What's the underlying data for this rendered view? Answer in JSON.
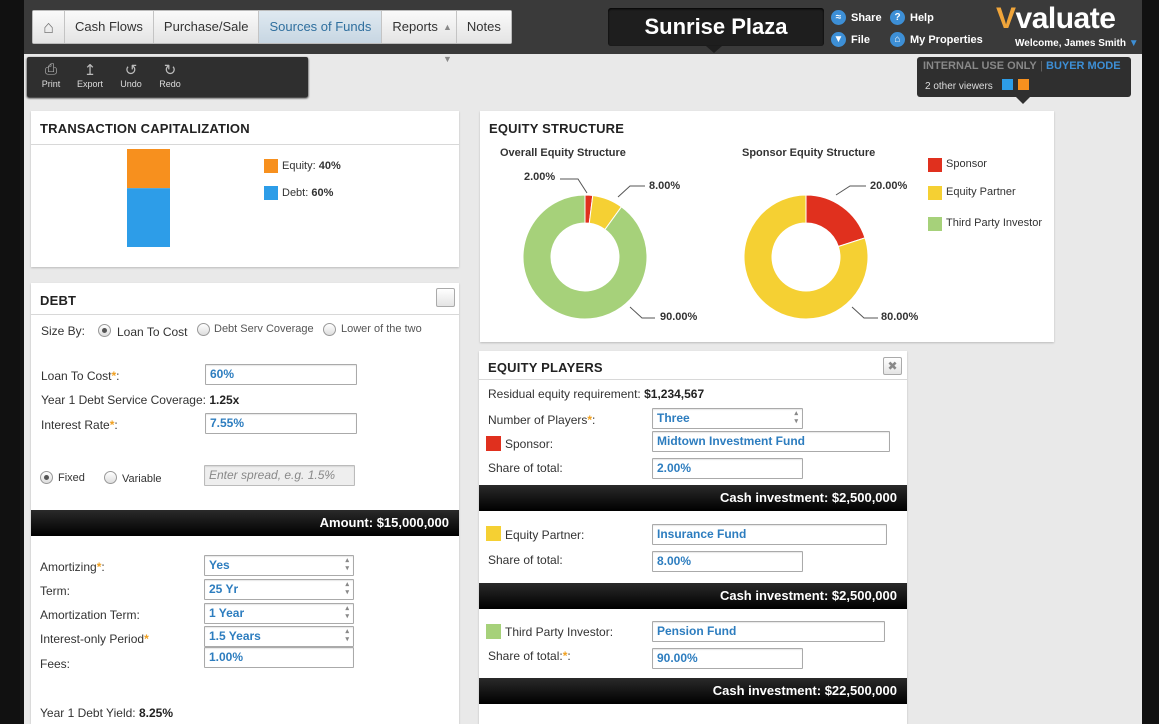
{
  "nav": {
    "home_icon": "home-icon",
    "tabs": [
      "Cash Flows",
      "Purchase/Sale",
      "Sources of Funds",
      "Reports",
      "Notes"
    ],
    "active_tab": "Sources of Funds"
  },
  "header": {
    "property_name": "Sunrise Plaza",
    "share": "Share",
    "file": "File",
    "help": "Help",
    "my_properties": "My Properties",
    "brand": "valuate",
    "welcome": "Welcome, James Smith"
  },
  "toolbar": {
    "print": "Print",
    "export": "Export",
    "undo": "Undo",
    "redo": "Redo"
  },
  "viewers": {
    "mode_internal": "INTERNAL USE ONLY",
    "mode_buyer": "BUYER MODE",
    "count_text": "2 other viewers"
  },
  "colors": {
    "equity": "#f7901e",
    "debt": "#2d9de8",
    "sponsor": "#e0301e",
    "equity_partner": "#f5d033",
    "third_party": "#a6d17a",
    "accent": "#2d7dbf"
  },
  "transaction": {
    "title": "TRANSACTION CAPITALIZATION",
    "legend": [
      {
        "label": "Equity:",
        "value": "40%"
      },
      {
        "label": "Debt:",
        "value": "60%"
      }
    ]
  },
  "equity_structure": {
    "title": "EQUITY STRUCTURE",
    "overall_title": "Overall Equity Structure",
    "overall_labels": [
      "2.00%",
      "8.00%",
      "90.00%"
    ],
    "sponsor_title": "Sponsor Equity Structure",
    "sponsor_labels": [
      "20.00%",
      "80.00%"
    ],
    "legend": [
      "Sponsor",
      "Equity Partner",
      "Third Party Investor"
    ]
  },
  "debt": {
    "title": "DEBT",
    "size_by_label": "Size By:",
    "size_options": [
      "Loan To Cost",
      "Debt Serv Coverage",
      "Lower of the two"
    ],
    "selected_size": "Loan To Cost",
    "ltc_label": "Loan To Cost",
    "ltc_value": "60%",
    "dscr_label": "Year 1 Debt Service Coverage:",
    "dscr_value": "1.25x",
    "rate_label": "Interest Rate",
    "rate_value": "7.55%",
    "rate_options": [
      "Fixed",
      "Variable"
    ],
    "selected_rate": "Fixed",
    "spread_placeholder": "Enter spread, e.g. 1.5%",
    "amount": "Amount: $15,000,000",
    "amortizing_label": "Amortizing",
    "amortizing_value": "Yes",
    "term_label": "Term:",
    "term_value": "25 Yr",
    "amort_term_label": "Amortization Term:",
    "amort_term_value": "1 Year",
    "io_label": "Interest-only Period",
    "io_value": "1.5 Years",
    "fees_label": "Fees:",
    "fees_value": "1.00%",
    "yield_label": "Year 1 Debt Yield:",
    "yield_value": "8.25%"
  },
  "players": {
    "title": "EQUITY PLAYERS",
    "residual_label": "Residual equity requirement:",
    "residual_value": "$1,234,567",
    "num_label": "Number of Players",
    "num_value": "Three",
    "share_label": "Share of total:",
    "list": [
      {
        "role": "Sponsor:",
        "name": "Midtown Investment Fund",
        "share": "2.00%",
        "cash": "Cash investment: $2,500,000"
      },
      {
        "role": "Equity Partner:",
        "name": "Insurance Fund",
        "share": "8.00%",
        "cash": "Cash investment: $2,500,000"
      },
      {
        "role": "Third Party Investor:",
        "name": "Pension Fund",
        "share": "90.00%",
        "cash": "Cash investment: $22,500,000"
      }
    ]
  },
  "chart_data": [
    {
      "type": "bar",
      "title": "TRANSACTION CAPITALIZATION",
      "stacked": true,
      "categories": [
        ""
      ],
      "series": [
        {
          "name": "Equity",
          "values": [
            40
          ]
        },
        {
          "name": "Debt",
          "values": [
            60
          ]
        }
      ],
      "legend": "right"
    },
    {
      "type": "pie",
      "title": "Overall Equity Structure",
      "donut": true,
      "categories": [
        "Sponsor",
        "Equity Partner",
        "Third Party Investor"
      ],
      "values": [
        2,
        8,
        90
      ]
    },
    {
      "type": "pie",
      "title": "Sponsor Equity Structure",
      "donut": true,
      "categories": [
        "Sponsor",
        "Equity Partner"
      ],
      "values": [
        20,
        80
      ]
    }
  ]
}
